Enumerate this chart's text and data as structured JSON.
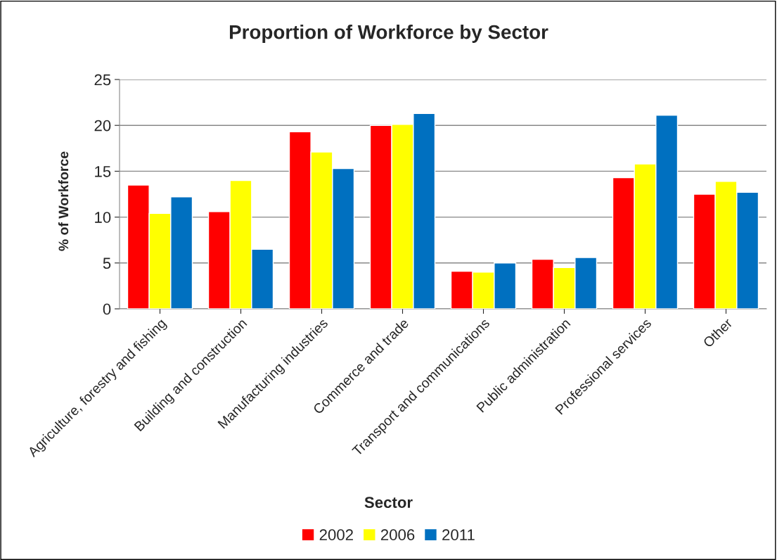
{
  "chart_data": {
    "type": "bar",
    "title": "Proportion of Workforce by Sector",
    "xlabel": "Sector",
    "ylabel": "% of Workforce",
    "categories": [
      "Agriculture, forestry and fishing",
      "Building and construction",
      "Manufacturing industries",
      "Commerce and trade",
      "Transport and communications",
      "Public administration",
      "Professional services",
      "Other"
    ],
    "series": [
      {
        "name": "2002",
        "color": "#ff0000",
        "values": [
          13.5,
          10.6,
          19.3,
          20.0,
          4.1,
          5.4,
          14.3,
          12.5
        ]
      },
      {
        "name": "2006",
        "color": "#ffff00",
        "values": [
          10.4,
          14.0,
          17.1,
          20.1,
          4.0,
          4.5,
          15.8,
          13.9
        ]
      },
      {
        "name": "2011",
        "color": "#0070c0",
        "values": [
          12.2,
          6.5,
          15.3,
          21.3,
          5.0,
          5.6,
          21.1,
          12.7
        ]
      }
    ],
    "ylim": [
      0,
      25
    ],
    "yticks": [
      0,
      5,
      10,
      15,
      20,
      25
    ],
    "grid": "y",
    "legend": "bottom"
  }
}
